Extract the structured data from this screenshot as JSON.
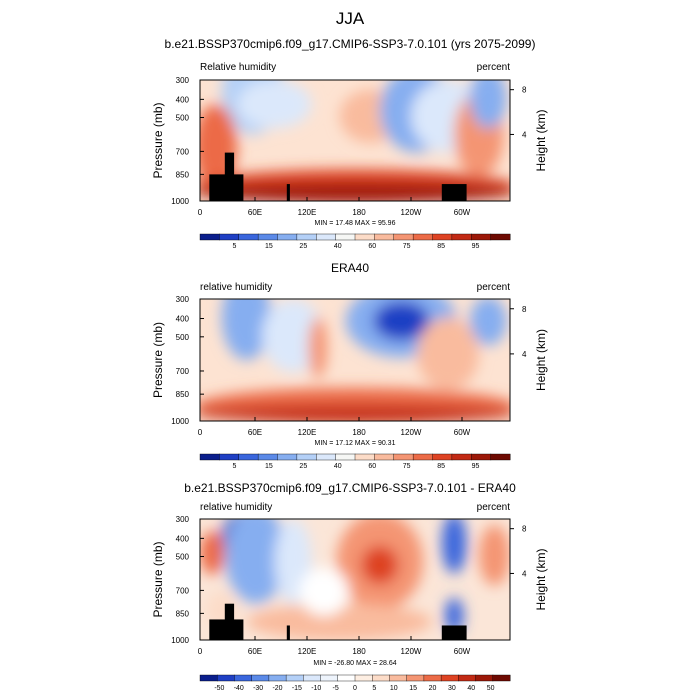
{
  "page_title": "JJA",
  "colors": {
    "fill_scale_rh": [
      "#0a1e8c",
      "#1f3fc4",
      "#3a66dd",
      "#5b8ae8",
      "#86aef0",
      "#b4d0f7",
      "#dbe8fb",
      "#f6f7f5",
      "#fcdcc8",
      "#f9bb9e",
      "#f49573",
      "#ec6b47",
      "#de4323",
      "#c22a14",
      "#9c1808",
      "#6e0a02"
    ],
    "fill_scale_diff": [
      "#0a1e8c",
      "#1f3fc4",
      "#3a66dd",
      "#5b8ae8",
      "#86aef0",
      "#b4d0f7",
      "#dbe8fb",
      "#eef4fc",
      "#ffffff",
      "#fdeee2",
      "#fcdcc8",
      "#f9bb9e",
      "#f49573",
      "#ec6b47",
      "#de4323",
      "#c22a14",
      "#9c1808",
      "#6e0a02"
    ],
    "terrain": "#000000"
  },
  "chart_data": [
    {
      "type": "heatmap",
      "title": "b.e21.BSSP370cmip6.f09_g17.CMIP6-SSP3-7.0.101 (yrs 2075-2099)",
      "left_label": "Relative humidity",
      "right_label": "percent",
      "xlabel": "",
      "ylabel": "Pressure (mb)",
      "ylabel_right": "Height (km)",
      "x_ticks": [
        "0",
        "60E",
        "120E",
        "180",
        "120W",
        "60W"
      ],
      "y_ticks": [
        "300",
        "400",
        "500",
        "700",
        "850",
        "1000"
      ],
      "y_right_ticks": [
        "8",
        "4"
      ],
      "ylim": [
        1000,
        300
      ],
      "y_scale": "log-pressure",
      "stats": "MIN = 17.48  MAX = 95.96",
      "colorbar_labels": [
        "5",
        "15",
        "25",
        "40",
        "60",
        "75",
        "85",
        "95"
      ]
    },
    {
      "type": "heatmap",
      "title": "ERA40",
      "left_label": "relative humidity",
      "right_label": "percent",
      "xlabel": "",
      "ylabel": "Pressure (mb)",
      "ylabel_right": "Height (km)",
      "x_ticks": [
        "0",
        "60E",
        "120E",
        "180",
        "120W",
        "60W"
      ],
      "y_ticks": [
        "300",
        "400",
        "500",
        "700",
        "850",
        "1000"
      ],
      "y_right_ticks": [
        "8",
        "4"
      ],
      "ylim": [
        1000,
        300
      ],
      "y_scale": "log-pressure",
      "stats": "MIN = 17.12  MAX = 90.31",
      "colorbar_labels": [
        "5",
        "15",
        "25",
        "40",
        "60",
        "75",
        "85",
        "95"
      ]
    },
    {
      "type": "heatmap",
      "title": "b.e21.BSSP370cmip6.f09_g17.CMIP6-SSP3-7.0.101 - ERA40",
      "left_label": "relative humidity",
      "right_label": "percent",
      "xlabel": "",
      "ylabel": "Pressure (mb)",
      "ylabel_right": "Height (km)",
      "x_ticks": [
        "0",
        "60E",
        "120E",
        "180",
        "120W",
        "60W"
      ],
      "y_ticks": [
        "300",
        "400",
        "500",
        "700",
        "850",
        "1000"
      ],
      "y_right_ticks": [
        "8",
        "4"
      ],
      "ylim": [
        1000,
        300
      ],
      "y_scale": "log-pressure",
      "stats": "MIN = -26.80  MAX = 28.64",
      "colorbar_labels": [
        "-50",
        "-40",
        "-30",
        "-20",
        "-15",
        "-10",
        "-5",
        "0",
        "5",
        "10",
        "15",
        "20",
        "30",
        "40",
        "50"
      ]
    }
  ]
}
